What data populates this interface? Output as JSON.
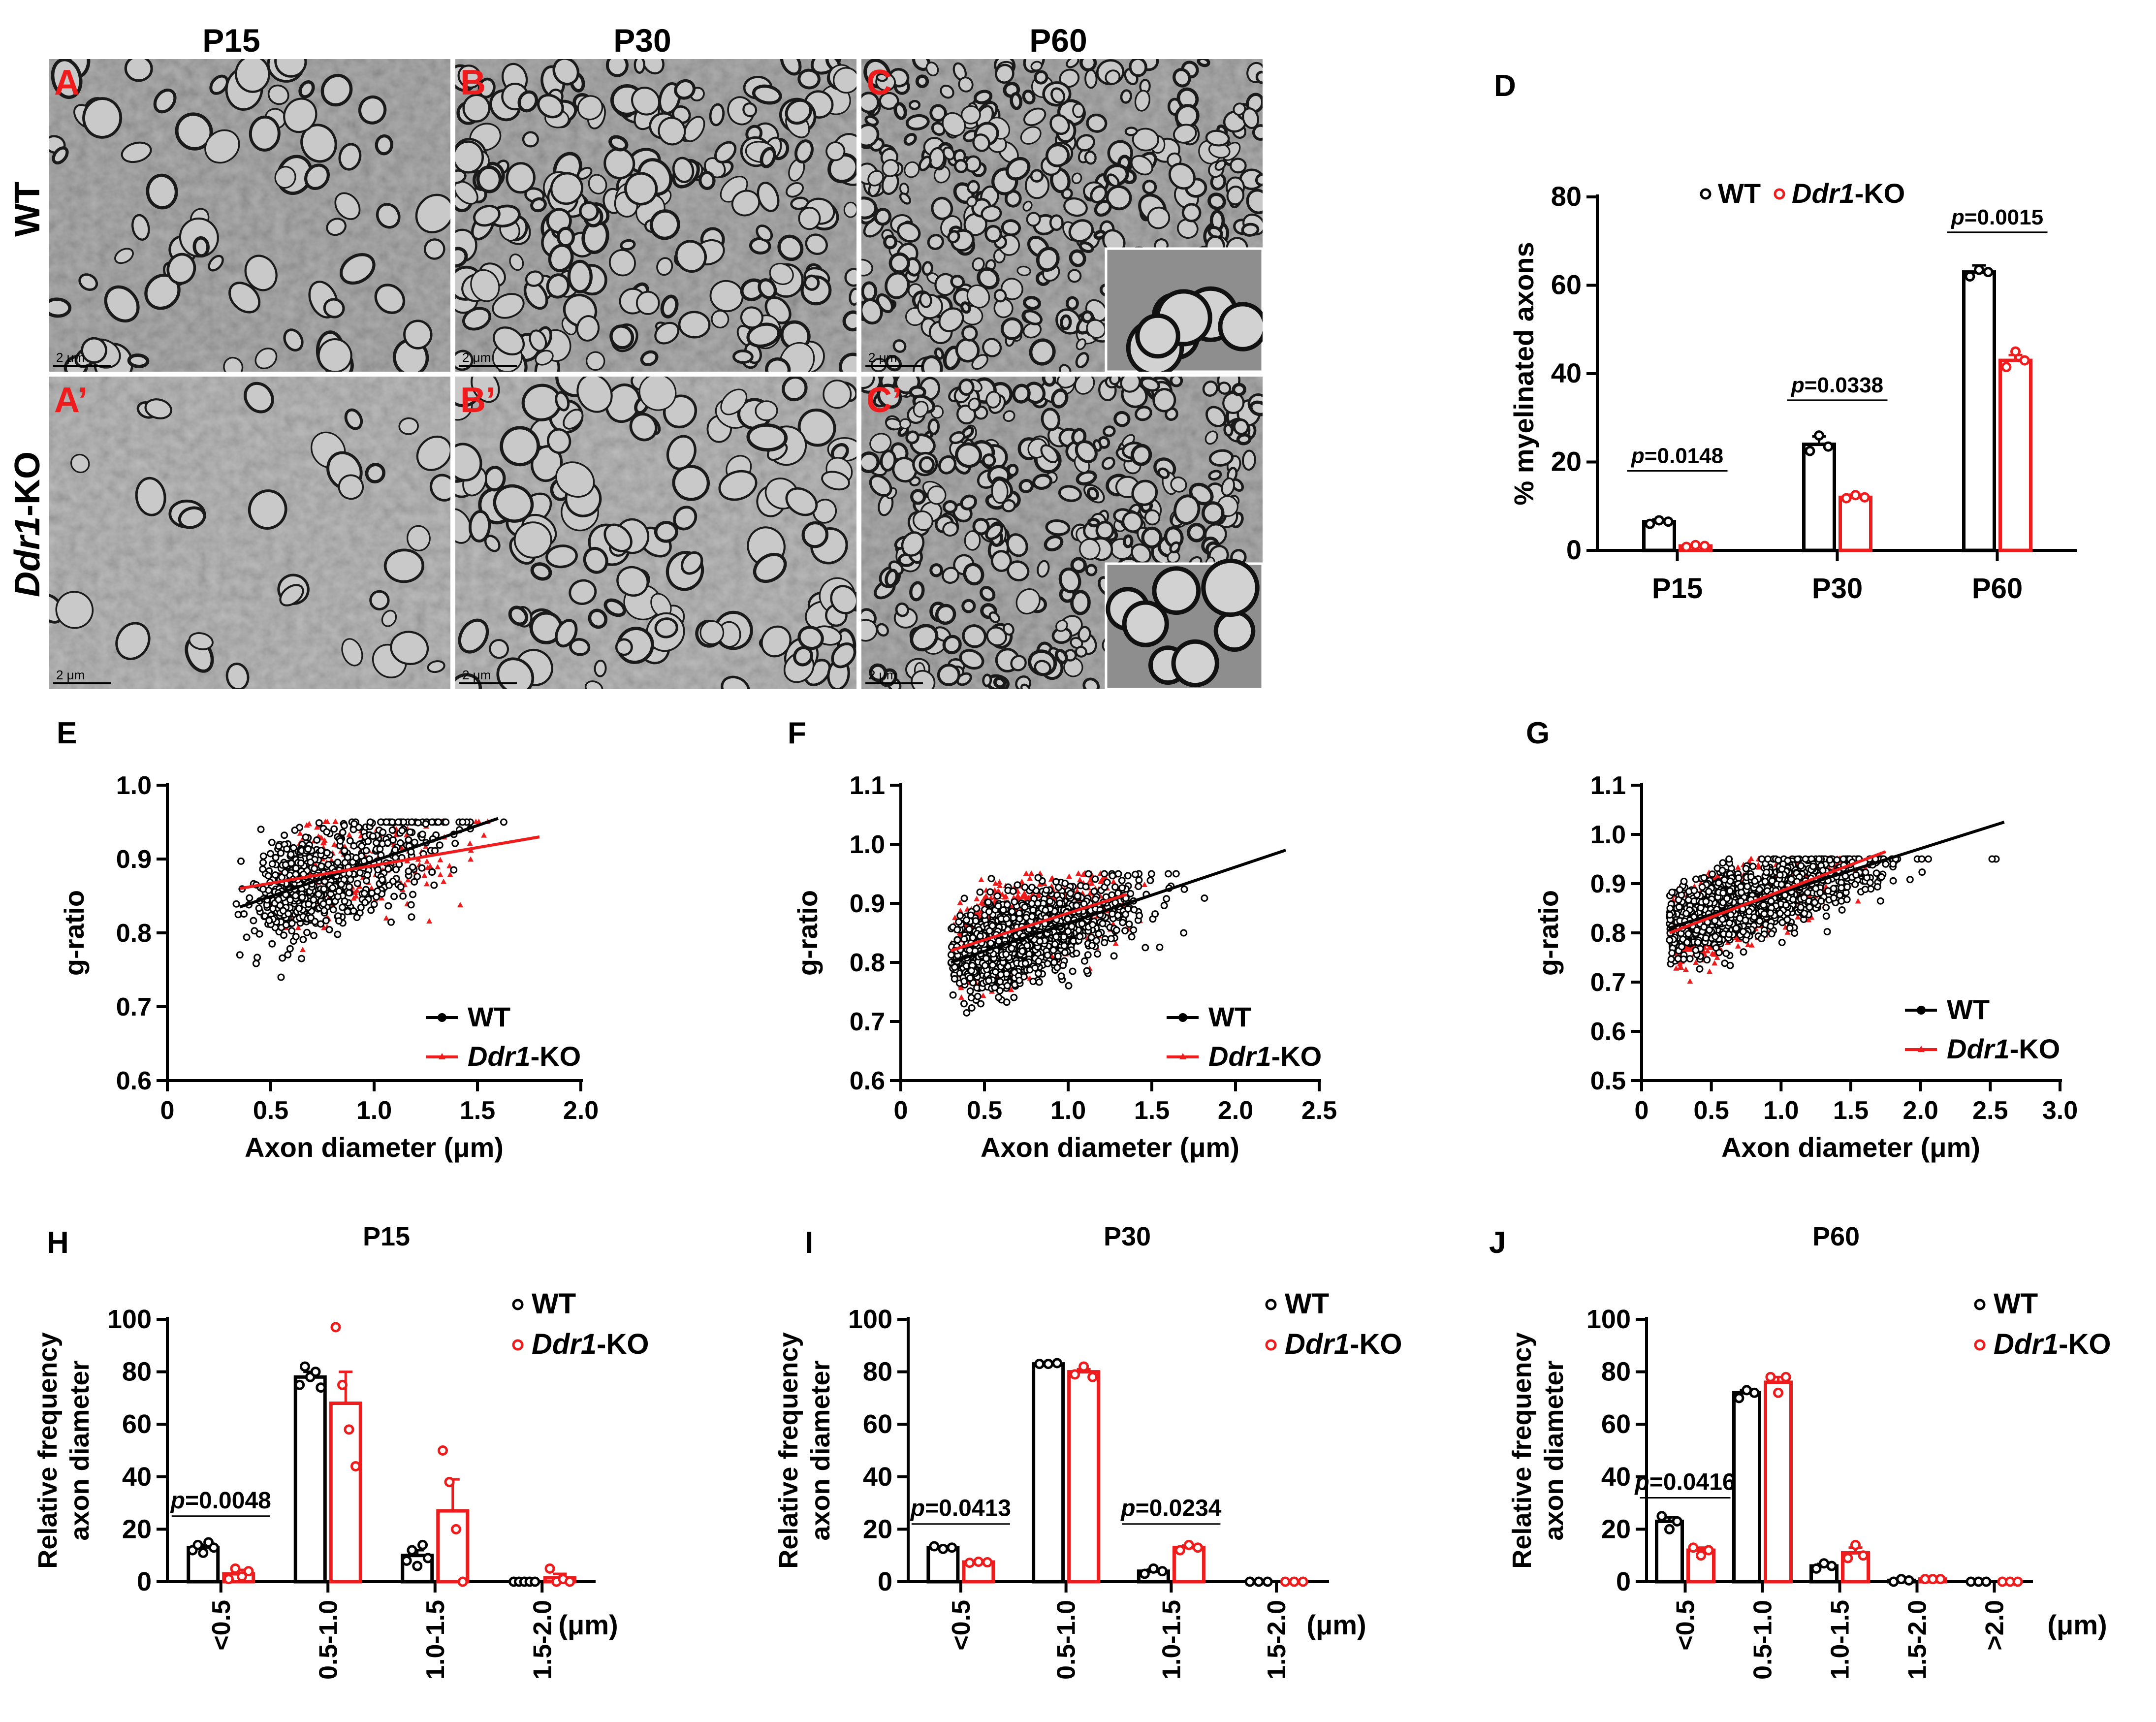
{
  "colors": {
    "wt": "#000000",
    "ko": "#ee1c1c",
    "em_bg": "#9a9a9a",
    "em_dark": "#1a1a1a"
  },
  "micrographs": {
    "columns": [
      "P15",
      "P30",
      "P60"
    ],
    "rows": [
      {
        "label": "WT",
        "italic": "",
        "suffix": ""
      },
      {
        "label": "",
        "italic": "Ddr1",
        "suffix": "-KO"
      }
    ],
    "panels": [
      {
        "letter": "A",
        "scale": "2 μm"
      },
      {
        "letter": "B",
        "scale": "2 μm"
      },
      {
        "letter": "C",
        "scale": "2 μm"
      },
      {
        "letter": "A’",
        "scale": "2 μm"
      },
      {
        "letter": "B’",
        "scale": "2 μm"
      },
      {
        "letter": "C’",
        "scale": "2 μm"
      }
    ]
  },
  "legend": {
    "wt": "WT",
    "ko_italic": "Ddr1",
    "ko_suffix": "-KO"
  },
  "chart_data": [
    {
      "id": "D",
      "type": "bar",
      "letter": "D",
      "title": "",
      "ylabel": "% myelinated axons",
      "xlabel": "",
      "ylim": [
        0,
        80
      ],
      "yticks": [
        0,
        20,
        40,
        60,
        80
      ],
      "categories": [
        "P15",
        "P30",
        "P60"
      ],
      "unit_label": "",
      "series": [
        {
          "name": "WT",
          "values": [
            6.5,
            24,
            63
          ],
          "errors": [
            0.5,
            1.8,
            1.5
          ],
          "points": [
            [
              6,
              6.8,
              6.5
            ],
            [
              22.5,
              26,
              23.5
            ],
            [
              62,
              63.5,
              63
            ]
          ]
        },
        {
          "name": "Ddr1-KO",
          "values": [
            1,
            12,
            43
          ],
          "errors": [
            0.3,
            0.6,
            1.2
          ],
          "points": [
            [
              0.8,
              1.2,
              1
            ],
            [
              11.8,
              12.5,
              12
            ],
            [
              41.5,
              45,
              43
            ]
          ]
        }
      ],
      "significance": [
        {
          "category": 0,
          "y": 18,
          "text": "=0.0148"
        },
        {
          "category": 1,
          "y": 34,
          "text": "=0.0338"
        },
        {
          "category": 2,
          "y": 72,
          "text": "=0.0015"
        }
      ]
    },
    {
      "id": "E",
      "type": "scatter",
      "letter": "E",
      "xlabel": "Axon diameter (μm)",
      "ylabel": "g-ratio",
      "xlim": [
        0,
        2.0
      ],
      "ylim": [
        0.6,
        1.0
      ],
      "xticks": [
        0,
        0.5,
        1.0,
        1.5,
        2.0
      ],
      "yticks": [
        0.6,
        0.7,
        0.8,
        0.9,
        1.0
      ],
      "fits": [
        {
          "name": "WT",
          "x": [
            0.35,
            1.6
          ],
          "y": [
            0.835,
            0.955
          ]
        },
        {
          "name": "Ddr1-KO",
          "x": [
            0.35,
            1.8
          ],
          "y": [
            0.86,
            0.93
          ]
        }
      ]
    },
    {
      "id": "F",
      "type": "scatter",
      "letter": "F",
      "xlabel": "Axon diameter (μm)",
      "ylabel": "g-ratio",
      "xlim": [
        0,
        2.5
      ],
      "ylim": [
        0.6,
        1.1
      ],
      "xticks": [
        0,
        0.5,
        1.0,
        1.5,
        2.0,
        2.5
      ],
      "yticks": [
        0.6,
        0.7,
        0.8,
        0.9,
        1.0,
        1.1
      ],
      "fits": [
        {
          "name": "WT",
          "x": [
            0.3,
            2.3
          ],
          "y": [
            0.8,
            0.99
          ]
        },
        {
          "name": "Ddr1-KO",
          "x": [
            0.3,
            1.35
          ],
          "y": [
            0.82,
            0.915
          ]
        }
      ]
    },
    {
      "id": "G",
      "type": "scatter",
      "letter": "G",
      "xlabel": "Axon diameter (μm)",
      "ylabel": "g-ratio",
      "xlim": [
        0,
        3.0
      ],
      "ylim": [
        0.5,
        1.1
      ],
      "xticks": [
        0,
        0.5,
        1.0,
        1.5,
        2.0,
        2.5,
        3.0
      ],
      "yticks": [
        0.5,
        0.6,
        0.7,
        0.8,
        0.9,
        1.0,
        1.1
      ],
      "fits": [
        {
          "name": "WT",
          "x": [
            0.2,
            2.6
          ],
          "y": [
            0.81,
            1.025
          ]
        },
        {
          "name": "Ddr1-KO",
          "x": [
            0.2,
            1.75
          ],
          "y": [
            0.8,
            0.965
          ]
        }
      ]
    },
    {
      "id": "H",
      "type": "bar",
      "letter": "H",
      "title": "P15",
      "ylabel": "Relative frequency",
      "ylabel2": "axon diameter",
      "ylim": [
        0,
        100
      ],
      "yticks": [
        0,
        20,
        40,
        60,
        80,
        100
      ],
      "categories": [
        "<0.5",
        "0.5-1.0",
        "1.0-1.5",
        "1.5-2.0"
      ],
      "unit_label": "(μm)",
      "series": [
        {
          "name": "WT",
          "values": [
            13,
            78,
            10,
            0
          ],
          "errors": [
            1,
            2,
            2,
            0
          ],
          "points": [
            [
              12,
              14,
              11,
              15,
              13
            ],
            [
              75,
              82,
              78,
              80,
              74
            ],
            [
              8,
              12,
              6,
              14,
              9
            ],
            [
              0,
              0,
              0,
              0,
              0
            ]
          ]
        },
        {
          "name": "Ddr1-KO",
          "values": [
            3,
            68,
            27,
            1.5
          ],
          "errors": [
            1.5,
            12,
            12,
            1.5
          ],
          "points": [
            [
              1,
              5,
              2,
              4
            ],
            [
              97,
              75,
              58,
              44
            ],
            [
              50,
              38,
              20,
              0
            ],
            [
              5,
              0,
              1,
              0
            ]
          ]
        }
      ],
      "significance": [
        {
          "category": 0,
          "y": 25,
          "text": "=0.0048"
        }
      ]
    },
    {
      "id": "I",
      "type": "bar",
      "letter": "I",
      "title": "P30",
      "ylabel": "Relative frequency",
      "ylabel2": "axon diameter",
      "ylim": [
        0,
        100
      ],
      "yticks": [
        0,
        20,
        40,
        60,
        80,
        100
      ],
      "categories": [
        "<0.5",
        "0.5-1.0",
        "1.0-1.5",
        "1.5-2.0"
      ],
      "unit_label": "(μm)",
      "series": [
        {
          "name": "WT",
          "values": [
            13,
            83,
            4,
            0
          ],
          "errors": [
            0.5,
            0.3,
            0.6,
            0
          ],
          "points": [
            [
              13.5,
              12.5,
              13
            ],
            [
              83,
              83,
              83.3
            ],
            [
              3,
              5,
              4
            ],
            [
              0,
              0,
              0
            ]
          ]
        },
        {
          "name": "Ddr1-KO",
          "values": [
            7.5,
            80,
            13,
            0
          ],
          "errors": [
            0.3,
            1,
            0.8,
            0
          ],
          "points": [
            [
              7.2,
              7.6,
              7.4
            ],
            [
              79,
              82,
              78
            ],
            [
              12,
              14,
              13
            ],
            [
              0,
              0,
              0
            ]
          ]
        }
      ],
      "significance": [
        {
          "category": 0,
          "y": 22,
          "text": "=0.0413"
        },
        {
          "category": 2,
          "y": 22,
          "text": "=0.0234"
        }
      ]
    },
    {
      "id": "J",
      "type": "bar",
      "letter": "J",
      "title": "P60",
      "ylabel": "Relative frequency",
      "ylabel2": "axon diameter",
      "ylim": [
        0,
        100
      ],
      "yticks": [
        0,
        20,
        40,
        60,
        80,
        100
      ],
      "categories": [
        "<0.5",
        "0.5-1.0",
        "1.0-1.5",
        "1.5-2.0",
        ">2.0"
      ],
      "unit_label": "(μm)",
      "series": [
        {
          "name": "WT",
          "values": [
            23,
            72,
            6,
            0.5,
            0
          ],
          "errors": [
            1.5,
            1,
            0.8,
            0.2,
            0
          ],
          "points": [
            [
              25,
              20,
              23
            ],
            [
              70,
              73,
              72
            ],
            [
              5,
              7,
              6
            ],
            [
              0,
              1,
              0.5
            ],
            [
              0,
              0,
              0
            ]
          ]
        },
        {
          "name": "Ddr1-KO",
          "values": [
            12,
            76,
            11,
            1,
            0
          ],
          "errors": [
            1,
            2,
            2,
            0.3,
            0
          ],
          "points": [
            [
              13,
              10,
              12
            ],
            [
              78,
              72,
              78
            ],
            [
              9,
              14,
              10
            ],
            [
              1,
              1,
              1
            ],
            [
              0,
              0,
              0
            ]
          ]
        }
      ],
      "significance": [
        {
          "category": 0,
          "y": 32,
          "text": "=0.0416"
        }
      ]
    }
  ]
}
